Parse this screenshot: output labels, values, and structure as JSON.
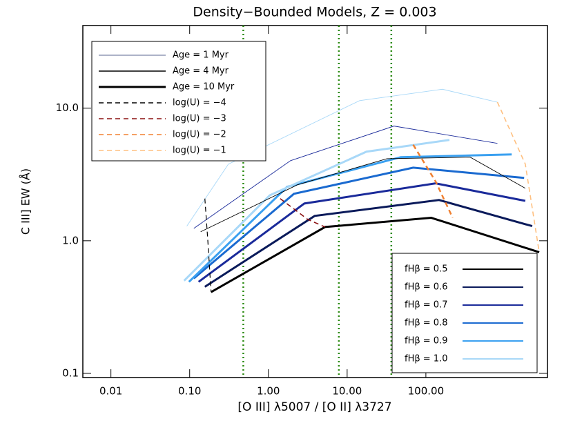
{
  "chart_data": {
    "type": "line",
    "title": "Density−Bounded Models, Z = 0.003",
    "x_label": "[O III] λ5007 / [O II] λ3727",
    "y_label": "C III] EW (Å)",
    "xscale": "log",
    "yscale": "log",
    "xlim": [
      0.0044,
      3500
    ],
    "ylim": [
      0.093,
      42
    ],
    "xticks": [
      0.01,
      {
        "value": 0.1,
        "label": "0.10"
      },
      {
        "value": 1,
        "label": "1.00"
      },
      {
        "value": 10,
        "label": "10.00"
      },
      {
        "value": 100,
        "label": "100.00"
      }
    ],
    "yticks": [
      0.1,
      {
        "value": 1,
        "label": "1.0"
      },
      {
        "value": 10,
        "label": "10.0"
      }
    ],
    "vlines": [
      0.48,
      7.85,
      36.4
    ],
    "vline_color": "#2a8a10",
    "legend_top_left": [
      {
        "label": "Age = 1 Myr",
        "color": "#20306a",
        "width": 0.8,
        "dash": false
      },
      {
        "label": "Age = 4 Myr",
        "color": "#000000",
        "width": 1.6,
        "dash": false
      },
      {
        "label": "Age = 10 Myr",
        "color": "#000000",
        "width": 3,
        "dash": false
      },
      {
        "label": "log(U) = −4",
        "color": "#000000",
        "width": 1.6,
        "dash": true
      },
      {
        "label": "log(U) = −3",
        "color": "#8b1010",
        "width": 1.6,
        "dash": true
      },
      {
        "label": "log(U) = −2",
        "color": "#f08030",
        "width": 1.6,
        "dash": true
      },
      {
        "label": "log(U) = −1",
        "color": "#ffc080",
        "width": 1.6,
        "dash": true
      }
    ],
    "series": [
      {
        "name": "fHβ = 0.5",
        "color": "#000000",
        "width": 3,
        "dash": false,
        "x": [
          0.187,
          5.24,
          117,
          2750
        ],
        "values": [
          0.41,
          1.27,
          1.49,
          0.82
        ]
      },
      {
        "name": "fHβ = 0.6",
        "color": "#0a1a5a",
        "width": 3,
        "dash": false,
        "x": [
          0.156,
          3.87,
          147,
          2240
        ],
        "values": [
          0.45,
          1.54,
          2.03,
          1.29
        ]
      },
      {
        "name": "fHβ = 0.7",
        "color": "#1a2a9a",
        "width": 3,
        "dash": false,
        "x": [
          0.13,
          2.86,
          133,
          1830
        ],
        "values": [
          0.49,
          1.91,
          2.71,
          2.0
        ]
      },
      {
        "name": "fHβ = 0.8",
        "color": "#1a6ad0",
        "width": 3,
        "dash": false,
        "x": [
          0.113,
          2.11,
          69,
          1770
        ],
        "values": [
          0.52,
          2.26,
          3.56,
          2.98
        ]
      },
      {
        "name": "fHβ = 0.9",
        "color": "#3aa0f0",
        "width": 3,
        "dash": false,
        "x": [
          0.098,
          1.73,
          48,
          1230
        ],
        "values": [
          0.49,
          2.55,
          4.27,
          4.48
        ]
      },
      {
        "name": "fHβ = 1.0",
        "color": "#a8d8f8",
        "width": 3,
        "dash": false,
        "x": [
          0.085,
          1.04,
          17.6,
          199
        ],
        "values": [
          0.5,
          2.2,
          4.7,
          5.76
        ]
      },
      {
        "color": "#a8d8f8",
        "width": 0.9,
        "dash": false,
        "x": [
          0.092,
          0.31,
          14.4,
          162,
          810
        ],
        "values": [
          1.29,
          3.78,
          11.4,
          13.9,
          11.1
        ]
      },
      {
        "color": "#1a2a9a",
        "width": 0.9,
        "dash": false,
        "x": [
          0.113,
          1.91,
          39.3,
          810
        ],
        "values": [
          1.24,
          4.02,
          7.33,
          5.43
        ]
      },
      {
        "color": "#000000",
        "width": 0.9,
        "dash": false,
        "x": [
          0.138,
          2.33,
          32,
          365,
          1830
        ],
        "values": [
          1.17,
          2.64,
          4.16,
          4.27,
          2.49
        ]
      },
      {
        "color": "#ffc080",
        "width": 1.6,
        "dash": true,
        "x": [
          810,
          1830,
          2750
        ],
        "values": [
          11.1,
          3.79,
          0.82
        ]
      },
      {
        "color": "#f08030",
        "width": 2.5,
        "dash": true,
        "x": [
          69,
          133,
          219
        ],
        "values": [
          5.3,
          2.8,
          1.49
        ]
      },
      {
        "color": "#8b1010",
        "width": 1.6,
        "dash": true,
        "x": [
          1.41,
          3.16,
          5.24
        ],
        "values": [
          2.08,
          1.45,
          1.27
        ]
      },
      {
        "color": "#000000",
        "width": 1.2,
        "dash": true,
        "x": [
          0.156,
          0.17,
          0.187
        ],
        "values": [
          2.08,
          1.01,
          0.41
        ]
      }
    ]
  }
}
